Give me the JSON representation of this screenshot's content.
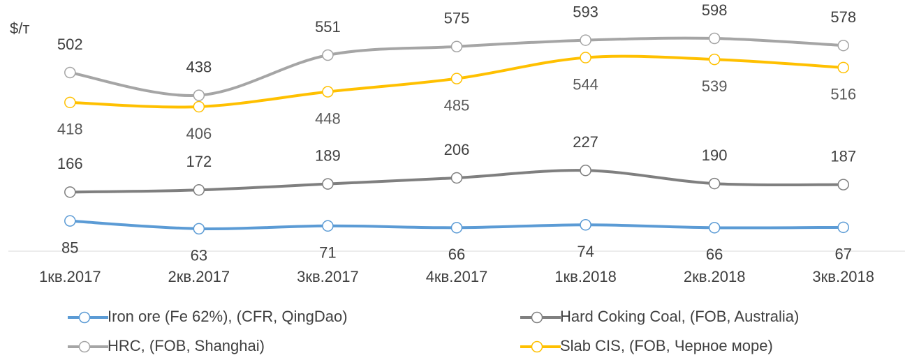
{
  "chart_data": {
    "type": "line",
    "y_label": "$/т",
    "categories": [
      "1кв.2017",
      "2кв.2017",
      "3кв.2017",
      "4кв.2017",
      "1кв.2018",
      "2кв.2018",
      "3кв.2018"
    ],
    "series": [
      {
        "name": "Iron ore (Fe 62%), (CFR, QingDao)",
        "color": "#5b9bd5",
        "values": [
          85,
          63,
          71,
          66,
          74,
          66,
          67
        ]
      },
      {
        "name": "Hard Coking Coal, (FOB, Australia)",
        "color": "#7f7f7f",
        "values": [
          166,
          172,
          189,
          206,
          227,
          190,
          187
        ]
      },
      {
        "name": "HRC, (FOB, Shanghai)",
        "color": "#a5a5a5",
        "values": [
          502,
          438,
          551,
          575,
          593,
          598,
          578
        ]
      },
      {
        "name": "Slab CIS, (FOB, Черное море)",
        "color": "#ffc000",
        "values": [
          418,
          406,
          448,
          485,
          544,
          539,
          516
        ]
      }
    ],
    "ylim": [
      0,
      700
    ],
    "legend": "bottom"
  }
}
